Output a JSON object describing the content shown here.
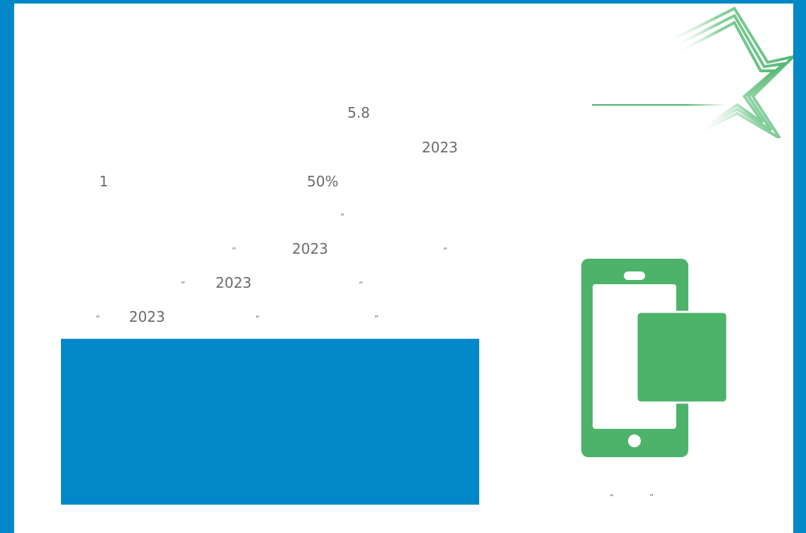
{
  "lines": [
    {
      "text": "5.8"
    },
    {
      "text": "2023"
    },
    {
      "text": "1"
    },
    {
      "text": "50%"
    },
    {
      "text": "“"
    },
    {
      "text": "”"
    },
    {
      "text": "2023"
    },
    {
      "text": "“"
    },
    {
      "text": "”"
    },
    {
      "text": "2023"
    },
    {
      "text": "“"
    },
    {
      "text": "”"
    },
    {
      "text": "2023"
    },
    {
      "text": "“"
    },
    {
      "text": "”"
    }
  ],
  "caption": {
    "open_quote": "“",
    "close_quote": "”"
  },
  "icons": {
    "decoration": "star-icon",
    "illustration": "mobile-phone-icon"
  },
  "colors": {
    "frame": "#0288c9",
    "accent_green": "#4db36b",
    "text": "#6b6b6b"
  }
}
